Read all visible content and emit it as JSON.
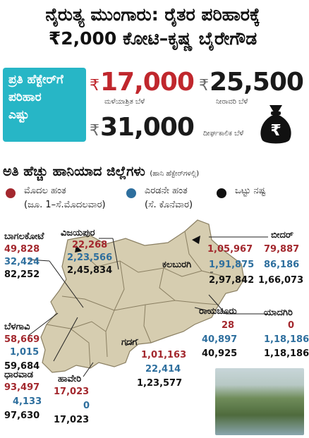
{
  "title_line1": "ನೈರುತ್ಯ ಮುಂಗಾರು: ರೈತರ ಪರಿಹಾರಕ್ಕೆ",
  "title_line2": "₹2,000 ಕೋಟಿ–ಕೃಷ್ಣ ಬೈರೇಗೌಡ",
  "compensation": {
    "box_line1": "ಪ್ರತಿ ಹೆಕ್ಟೇರ್‌ಗೆ",
    "box_line2": "ಪರಿಹಾರ",
    "box_line3": "ಎಷ್ಟು",
    "currency": "₹",
    "rainfed_amount": "17,000",
    "rainfed_label": "ಮಳೆಯಾಶ್ರಿತ ಬೆಳೆ",
    "irrigated_amount": "25,500",
    "irrigated_label": "ನೀರಾವರಿ ಬೆಳೆ",
    "perennial_amount": "31,000",
    "perennial_label": "ದೀರ್ಘಕಾಲಿಕ ಬೆಳೆ"
  },
  "section": {
    "heading": "ಅತಿ ಹೆಚ್ಚು ಹಾನಿಯಾದ ಜಿಲ್ಲೆಗಳು",
    "unit_note": "(ಹಾನಿ ಹೆಕ್ಟೇರ್‌ಗಳಲ್ಲಿ)"
  },
  "legend": {
    "phase1": "ಮೊದಲ ಹಂತ",
    "phase1_period": "(ಜೂ. 1–ಸೆ.ಮೊದಲವಾರ)",
    "phase2": "ಎರಡನೇ ಹಂತ",
    "phase2_period": "(ಸೆ. ಕೊನೆವಾರ)",
    "total": "ಒಟ್ಟು ನಷ್ಟ",
    "phase1_color": "#a3282e",
    "phase2_color": "#2e6f9e",
    "total_color": "#111111"
  },
  "districts": {
    "bagalkote": {
      "name": "ಬಾಗಲಕೋಟೆ",
      "p1": "49,828",
      "p2": "32,424",
      "total": "82,252"
    },
    "vijayapura": {
      "name": "ವಿಜಯಪುರ",
      "p1": "22,268",
      "p2": "2,23,566",
      "total": "2,45,834"
    },
    "bidar": {
      "name": "ಬೀದರ್",
      "p1": "79,887",
      "p2": "86,186",
      "total": "1,66,073"
    },
    "kalaburagi": {
      "name": "ಕಲಬುರಗಿ",
      "p1": "1,05,967",
      "p2": "1,91,875",
      "total": "2,97,842"
    },
    "belagavi": {
      "name": "ಬೆಳಗಾವಿ",
      "p1": "58,669",
      "p2": "1,015",
      "total": "59,684"
    },
    "yadgiri": {
      "name": "ಯಾದಗಿರಿ",
      "p1": "0",
      "p2": "1,18,186",
      "total": "1,18,186"
    },
    "raichur": {
      "name": "ರಾಯಚೂರು",
      "p1": "28",
      "p2": "40,897",
      "total": "40,925"
    },
    "gadag": {
      "name": "ಗದಗ",
      "p1": "1,01,163",
      "p2": "22,414",
      "total": "1,23,577"
    },
    "dharwad": {
      "name": "ಧಾರವಾಡ",
      "p1": "93,497",
      "p2": "4,133",
      "total": "97,630"
    },
    "haveri": {
      "name": "ಹಾವೇರಿ",
      "p1": "17,023",
      "p2": "0",
      "total": "17,023"
    }
  },
  "icons": {
    "money_bag": "money-bag-icon"
  }
}
